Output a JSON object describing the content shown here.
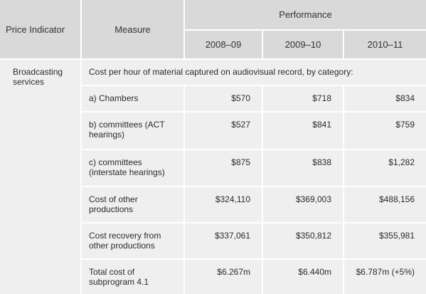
{
  "headers": {
    "price_indicator": "Price Indicator",
    "measure": "Measure",
    "performance": "Performance",
    "years": [
      "2008–09",
      "2009–10",
      "2010–11"
    ]
  },
  "indicator": "Broadcasting services",
  "category_intro": "Cost per hour of material captured on audiovisual record, by category:",
  "rows": [
    {
      "measure": "a) Chambers",
      "values": [
        "$570",
        "$718",
        "$834"
      ]
    },
    {
      "measure": "b) committees (ACT hearings)",
      "values": [
        "$527",
        "$841",
        "$759"
      ]
    },
    {
      "measure": "c) committees (interstate hearings)",
      "values": [
        "$875",
        "$838",
        "$1,282"
      ]
    },
    {
      "measure": "Cost of other productions",
      "values": [
        "$324,110",
        "$369,003",
        "$488,156"
      ]
    },
    {
      "measure": "Cost recovery from other productions",
      "values": [
        "$337,061",
        "$350,812",
        "$355,981"
      ]
    },
    {
      "measure": "Total cost of subprogram 4.1",
      "values": [
        "$6.267m",
        "$6.440m",
        "$6.787m (+5%)"
      ]
    }
  ],
  "colors": {
    "header_bg": "#d9d9d9",
    "body_bg": "#efefef",
    "grid": "#ffffff"
  }
}
